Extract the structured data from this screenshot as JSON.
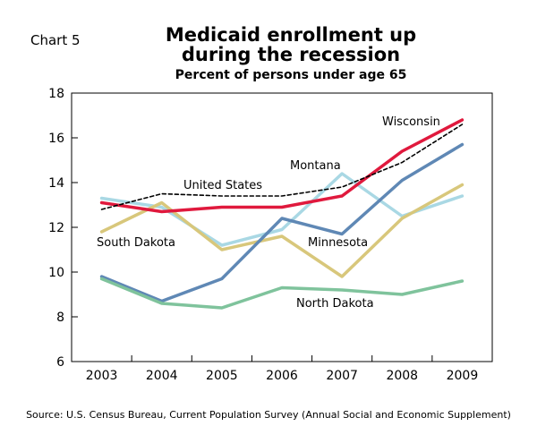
{
  "chart_label": "Chart 5",
  "chart_data": {
    "type": "line",
    "title_line1": "Medicaid enrollment up",
    "title_line2": "during the recession",
    "subtitle": "Percent of persons under age 65",
    "xlabel": "",
    "ylabel": "",
    "x": [
      "2003",
      "2004",
      "2005",
      "2006",
      "2007",
      "2008",
      "2009"
    ],
    "ylim": [
      6,
      18
    ],
    "yticks": [
      6,
      8,
      10,
      12,
      14,
      16,
      18
    ],
    "grid": false,
    "series": [
      {
        "name": "Montana",
        "color": "#a9d8e4",
        "dashed": false,
        "width": 3.5,
        "values": [
          13.3,
          12.9,
          11.2,
          11.9,
          14.4,
          12.5,
          13.4
        ]
      },
      {
        "name": "South Dakota",
        "color": "#d8c77b",
        "dashed": false,
        "width": 3.5,
        "values": [
          11.8,
          13.1,
          11.0,
          11.6,
          9.8,
          12.4,
          13.9
        ]
      },
      {
        "name": "Minnesota",
        "color": "#5f88b5",
        "dashed": false,
        "width": 3.5,
        "values": [
          9.8,
          8.7,
          9.7,
          12.4,
          11.7,
          14.1,
          15.7
        ]
      },
      {
        "name": "North Dakota",
        "color": "#7fc39c",
        "dashed": false,
        "width": 3.5,
        "values": [
          9.7,
          8.6,
          8.4,
          9.3,
          9.2,
          9.0,
          9.6
        ]
      },
      {
        "name": "Wisconsin",
        "color": "#e0193d",
        "dashed": false,
        "width": 3.5,
        "values": [
          13.1,
          12.7,
          12.9,
          12.9,
          13.4,
          15.4,
          16.8
        ]
      },
      {
        "name": "United States",
        "color": "#000000",
        "dashed": true,
        "width": 1.6,
        "values": [
          12.8,
          13.5,
          13.4,
          13.4,
          13.8,
          14.9,
          16.6
        ]
      }
    ]
  },
  "source": "Source: U.S. Census Bureau, Current Population Survey (Annual Social and Economic Supplement)"
}
